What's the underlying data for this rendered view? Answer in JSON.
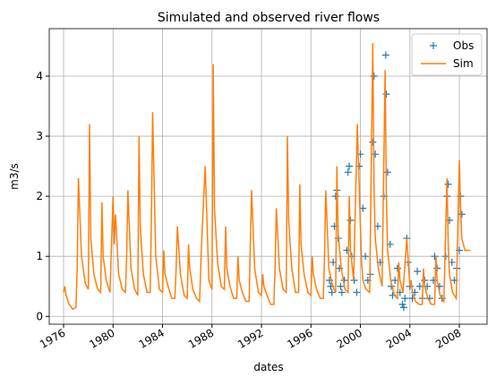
{
  "chart_data": {
    "type": "line",
    "title": "Simulated and observed river flows",
    "x_label": "dates",
    "y_label": "m3/s",
    "xlim": [
      1974.84,
      2010.24
    ],
    "ylim": [
      -0.13,
      4.79
    ],
    "xticks": [
      1976,
      1980,
      1984,
      1988,
      1992,
      1996,
      2000,
      2004,
      2008
    ],
    "yticks": [
      0,
      1,
      2,
      3,
      4
    ],
    "grid": true,
    "legend": "upper right",
    "series": [
      {
        "name": "Obs",
        "color": "#1f77b4",
        "marker": "+",
        "x": [
          1997.5,
          1997.6,
          1997.7,
          1997.8,
          1997.9,
          1998.0,
          1998.1,
          1998.2,
          1998.3,
          1998.4,
          1998.5,
          1998.7,
          1998.9,
          1999.0,
          1999.1,
          1999.2,
          1999.3,
          1999.5,
          1999.7,
          1999.9,
          2000.0,
          2000.2,
          2000.4,
          2000.6,
          2000.8,
          2001.0,
          2001.1,
          2001.2,
          2001.4,
          2001.6,
          2001.9,
          2002.05,
          2002.1,
          2002.2,
          2002.4,
          2002.5,
          2002.6,
          2002.8,
          2003.0,
          2003.2,
          2003.4,
          2003.5,
          2003.6,
          2003.75,
          2003.85,
          2004.0,
          2004.2,
          2004.4,
          2004.6,
          2004.8,
          2005.0,
          2005.2,
          2005.4,
          2005.6,
          2005.9,
          2006.0,
          2006.2,
          2006.4,
          2006.6,
          2006.9,
          2007.0,
          2007.1,
          2007.2,
          2007.4,
          2007.6,
          2007.8,
          2008.0,
          2008.1,
          2008.2
        ],
        "values": [
          0.6,
          0.5,
          0.4,
          0.9,
          1.5,
          2.0,
          2.1,
          1.3,
          0.8,
          0.5,
          0.4,
          0.6,
          1.1,
          2.4,
          2.5,
          1.6,
          1.0,
          0.6,
          0.4,
          2.5,
          2.7,
          1.8,
          1.0,
          0.6,
          0.7,
          2.9,
          4.0,
          2.7,
          1.5,
          0.9,
          2.0,
          4.35,
          3.7,
          2.4,
          1.2,
          0.5,
          0.35,
          0.6,
          0.8,
          0.4,
          0.2,
          0.15,
          0.3,
          1.3,
          0.9,
          0.5,
          0.3,
          0.4,
          0.75,
          0.5,
          0.3,
          0.6,
          0.5,
          0.3,
          0.6,
          1.0,
          0.8,
          0.5,
          0.3,
          1.0,
          2.0,
          2.2,
          1.6,
          0.9,
          0.6,
          0.8,
          1.1,
          2.0,
          1.7
        ]
      },
      {
        "name": "Sim",
        "color": "#ff7f0e",
        "marker": "line",
        "x": [
          1976,
          1976.1,
          1976.2,
          1976.45,
          1976.75,
          1977,
          1977.1,
          1977.2,
          1977.45,
          1977.75,
          1978,
          1978.1,
          1978.2,
          1978.45,
          1978.75,
          1979,
          1979.1,
          1979.2,
          1979.45,
          1979.75,
          1980,
          1980.1,
          1980.2,
          1980.45,
          1980.75,
          1981,
          1981.1,
          1981.2,
          1981.45,
          1981.75,
          1982,
          1982.1,
          1982.2,
          1982.45,
          1982.75,
          1983,
          1983.1,
          1983.2,
          1983.45,
          1983.75,
          1984,
          1984.1,
          1984.2,
          1984.45,
          1984.75,
          1985,
          1985.1,
          1985.2,
          1985.45,
          1985.75,
          1986,
          1986.1,
          1986.2,
          1986.45,
          1986.75,
          1987,
          1987.1,
          1987.2,
          1987.45,
          1987.75,
          1988,
          1988.1,
          1988.2,
          1988.45,
          1988.75,
          1989,
          1989.1,
          1989.2,
          1989.45,
          1989.75,
          1990,
          1990.1,
          1990.2,
          1990.45,
          1990.75,
          1991,
          1991.1,
          1991.2,
          1991.45,
          1991.75,
          1992,
          1992.1,
          1992.2,
          1992.45,
          1992.75,
          1993,
          1993.1,
          1993.2,
          1993.45,
          1993.75,
          1994,
          1994.1,
          1994.2,
          1994.45,
          1994.75,
          1995,
          1995.1,
          1995.2,
          1995.45,
          1995.75,
          1996,
          1996.1,
          1996.2,
          1996.45,
          1996.75,
          1997,
          1997.1,
          1997.2,
          1997.45,
          1997.75,
          1998,
          1998.1,
          1998.2,
          1998.45,
          1998.75,
          1999,
          1999.1,
          1999.2,
          1999.45,
          1999.75,
          2000,
          2000.1,
          2000.2,
          2000.45,
          2000.75,
          2001,
          2001.1,
          2001.2,
          2001.45,
          2001.75,
          2002,
          2002.1,
          2002.2,
          2002.45,
          2002.75,
          2003,
          2003.1,
          2003.2,
          2003.45,
          2003.75,
          2004,
          2004.1,
          2004.2,
          2004.45,
          2004.75,
          2005,
          2005.1,
          2005.2,
          2005.45,
          2005.75,
          2006,
          2006.1,
          2006.2,
          2006.45,
          2006.75,
          2007,
          2007.1,
          2007.2,
          2007.45,
          2007.75,
          2008,
          2008.1,
          2008.2,
          2008.45,
          2008.9
        ],
        "values": [
          0.4,
          0.5,
          0.35,
          0.2,
          0.12,
          0.15,
          0.8,
          2.3,
          1.0,
          0.55,
          0.45,
          3.2,
          1.3,
          0.7,
          0.45,
          0.4,
          1.9,
          1.0,
          0.6,
          0.4,
          2.0,
          1.2,
          1.7,
          0.7,
          0.45,
          0.4,
          1.0,
          2.1,
          0.8,
          0.45,
          0.35,
          3.0,
          1.5,
          0.7,
          0.4,
          0.4,
          1.6,
          3.4,
          1.0,
          0.45,
          0.4,
          1.1,
          0.7,
          0.5,
          0.3,
          0.3,
          0.8,
          1.5,
          0.7,
          0.35,
          0.3,
          1.2,
          0.8,
          0.45,
          0.3,
          0.25,
          0.9,
          1.4,
          2.5,
          0.6,
          0.45,
          4.2,
          1.8,
          0.9,
          0.5,
          0.45,
          1.5,
          0.8,
          0.5,
          0.3,
          0.3,
          1.0,
          0.6,
          0.4,
          0.25,
          0.25,
          1.2,
          2.1,
          0.8,
          0.4,
          0.35,
          0.7,
          0.5,
          0.35,
          0.2,
          0.2,
          0.8,
          1.8,
          0.8,
          0.45,
          0.4,
          3.0,
          1.6,
          0.8,
          0.4,
          0.4,
          2.2,
          1.2,
          0.7,
          0.4,
          0.35,
          1.0,
          0.7,
          0.45,
          0.3,
          0.3,
          1.0,
          2.1,
          0.8,
          0.5,
          0.4,
          2.5,
          1.4,
          0.8,
          0.45,
          0.4,
          2.0,
          1.1,
          0.6,
          3.2,
          1.5,
          0.9,
          0.6,
          0.45,
          0.4,
          4.55,
          2.2,
          1.3,
          0.8,
          0.5,
          4.1,
          2.0,
          1.1,
          0.6,
          0.35,
          0.3,
          0.9,
          0.6,
          0.4,
          1.3,
          0.5,
          0.6,
          0.4,
          0.25,
          0.2,
          0.2,
          0.8,
          0.5,
          0.3,
          0.2,
          0.2,
          1.0,
          0.6,
          0.35,
          0.25,
          2.3,
          1.2,
          0.7,
          0.4,
          0.3,
          2.6,
          1.8,
          1.3,
          1.1,
          1.1
        ]
      }
    ]
  }
}
